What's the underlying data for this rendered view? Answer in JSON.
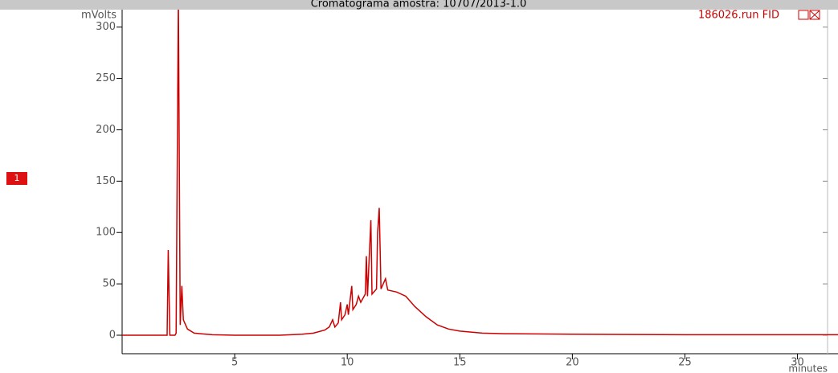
{
  "chart_data": {
    "type": "line",
    "title": "Cromatograma amostra: 10707/2013-1.0",
    "y_label": "mVolts",
    "x_label": "minutes",
    "trace_marker": "1",
    "x": [
      0,
      2.0,
      2.05,
      2.12,
      2.35,
      2.4,
      2.5,
      2.58,
      2.65,
      2.72,
      2.9,
      3.2,
      4,
      5,
      7,
      8,
      8.5,
      9,
      9.2,
      9.35,
      9.45,
      9.6,
      9.7,
      9.75,
      9.9,
      10.0,
      10.05,
      10.2,
      10.25,
      10.4,
      10.5,
      10.6,
      10.8,
      10.85,
      10.9,
      11.05,
      11.1,
      11.3,
      11.35,
      11.42,
      11.5,
      11.7,
      11.8,
      12.2,
      12.6,
      13,
      13.5,
      14,
      14.5,
      15,
      16,
      17,
      20,
      25,
      31.8
    ],
    "series": [
      {
        "name": "186026.run FID",
        "color": "#cc0000",
        "values": [
          0,
          0,
          83,
          0,
          0,
          2,
          330,
          10,
          48,
          15,
          6,
          2,
          0.5,
          0,
          0,
          1,
          2,
          5,
          8,
          15,
          8,
          12,
          32,
          15,
          20,
          30,
          20,
          48,
          25,
          30,
          38,
          32,
          40,
          77,
          38,
          112,
          40,
          45,
          100,
          124,
          45,
          55,
          44,
          42,
          38,
          28,
          18,
          10,
          6,
          4,
          2,
          1.5,
          1,
          0.5,
          0.5
        ]
      }
    ],
    "xlim": [
      0,
      31.8
    ],
    "ylim": [
      -18,
      317
    ],
    "xticks": [
      5,
      10,
      15,
      20,
      25,
      30
    ],
    "yticks": [
      0,
      50,
      100,
      150,
      200,
      250,
      300
    ]
  }
}
